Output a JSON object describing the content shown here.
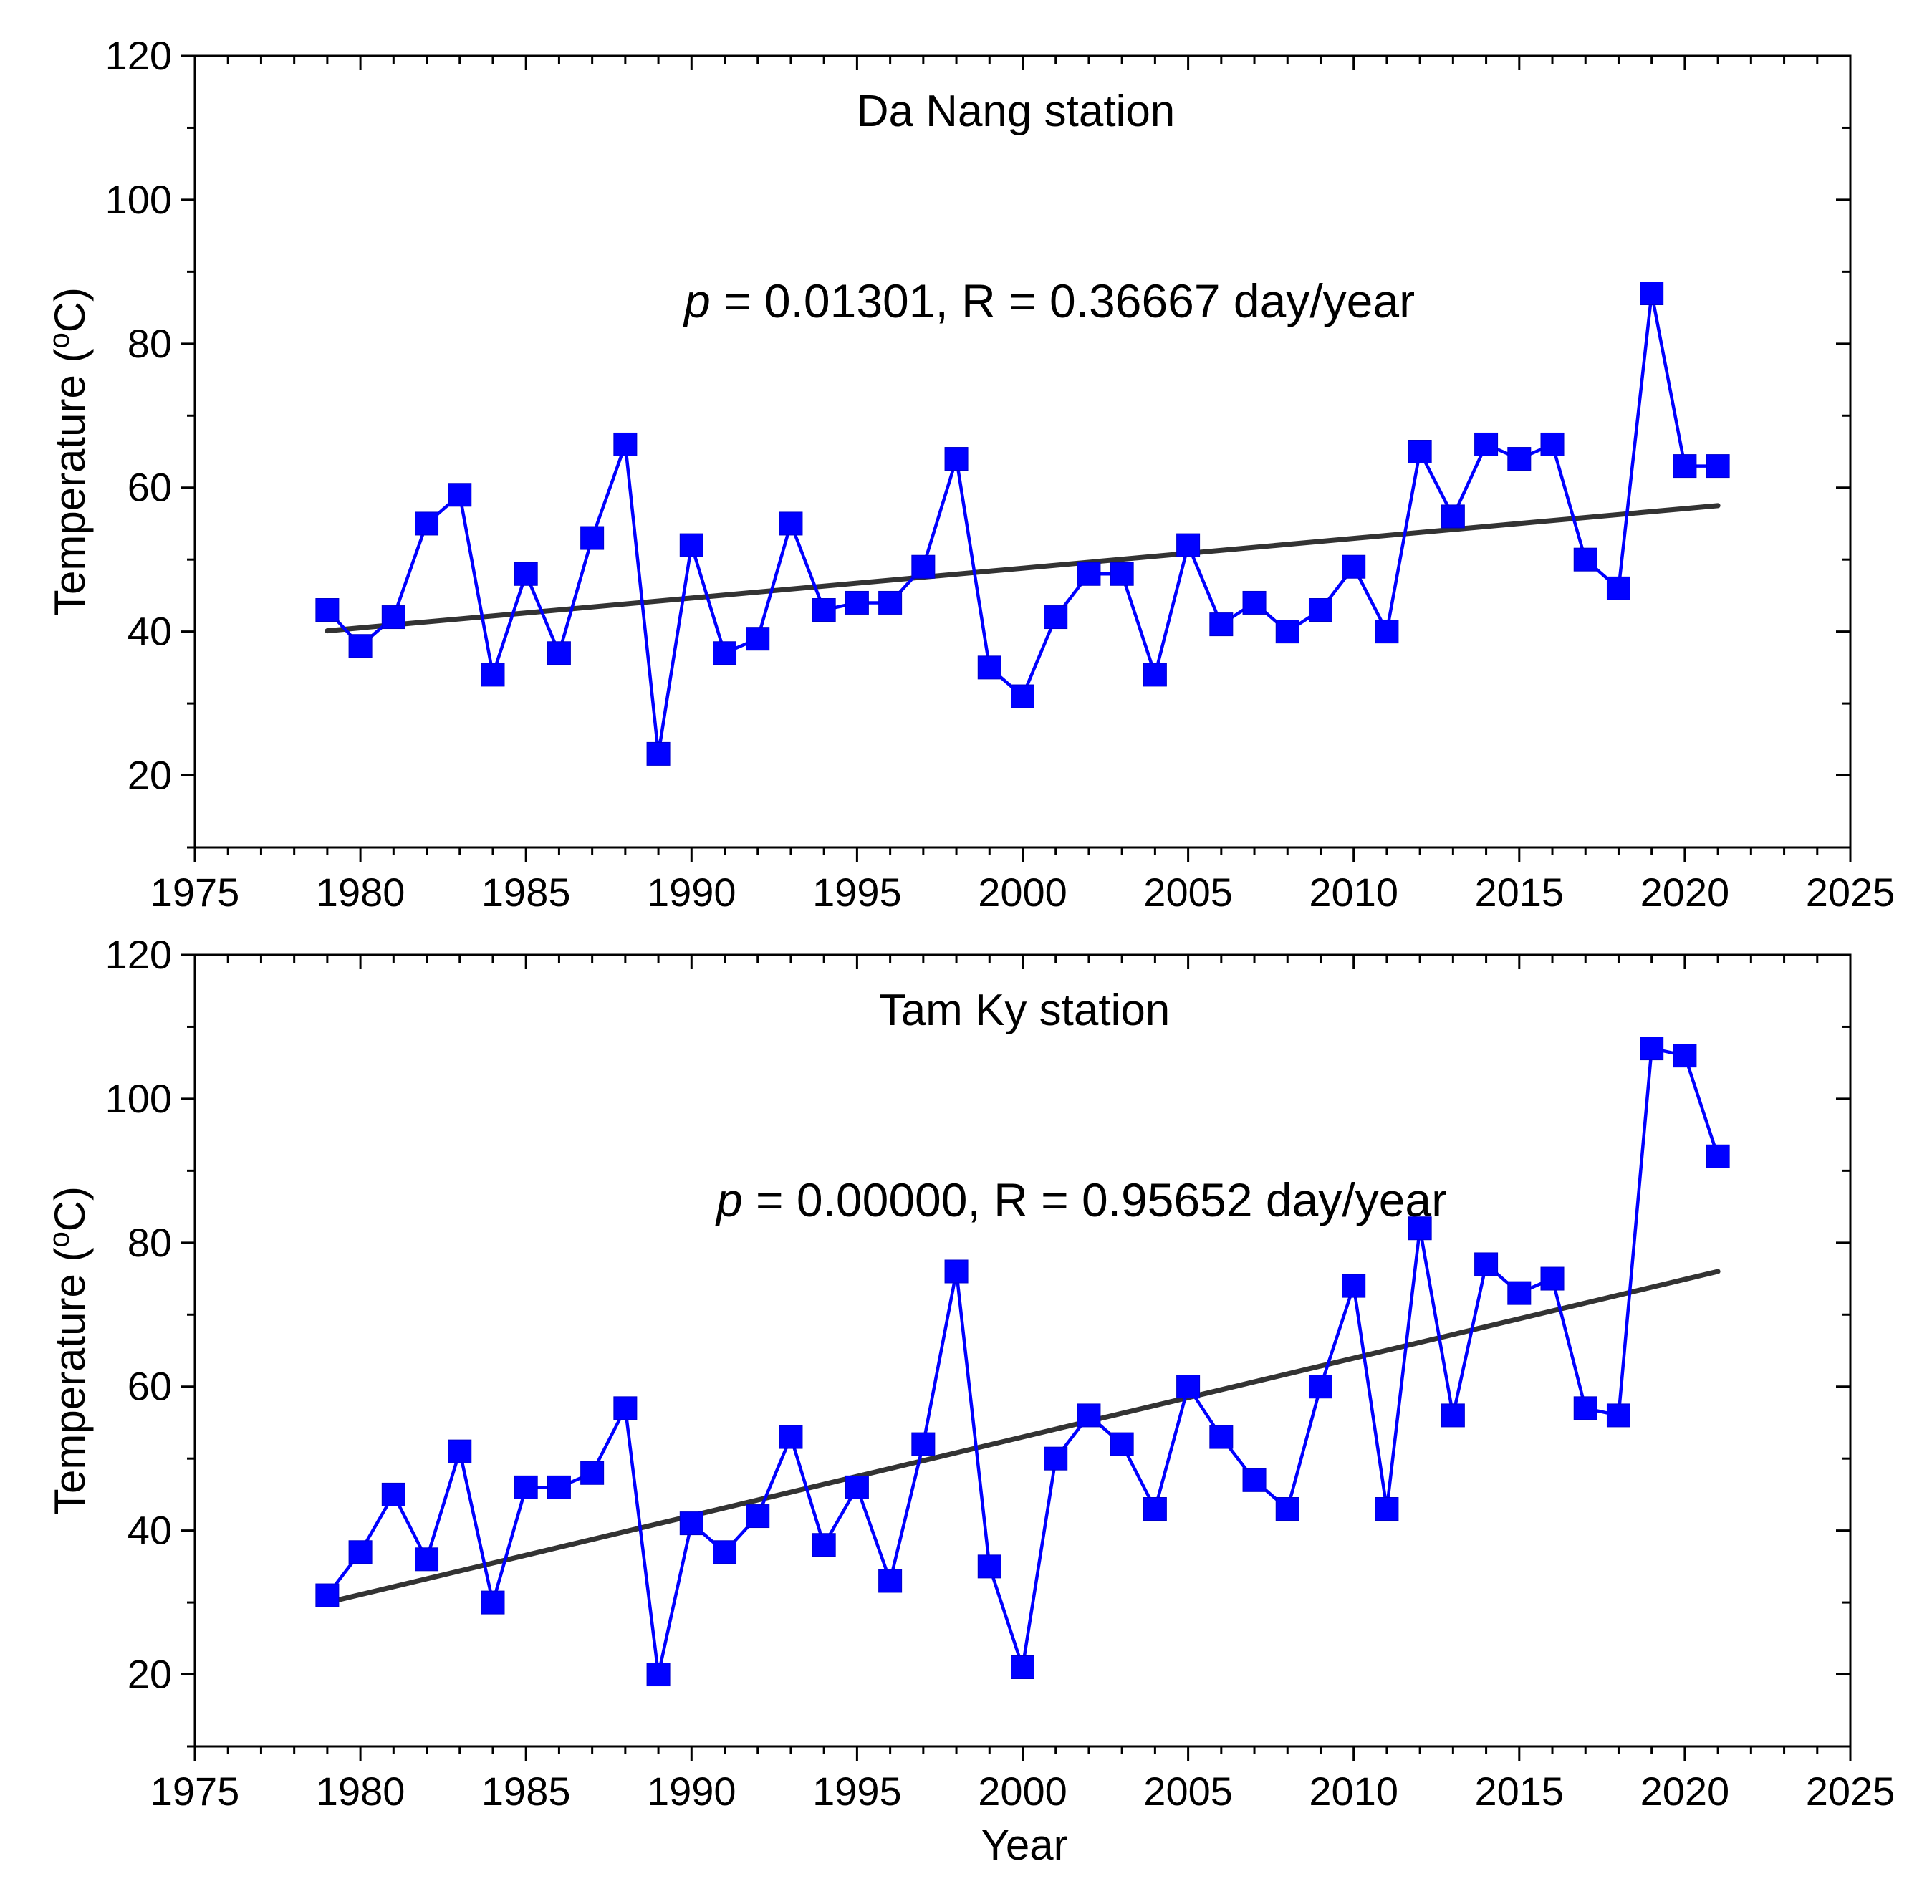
{
  "chart_data": [
    {
      "type": "line",
      "title": "Da Nang station",
      "annotation": {
        "p_label": "p",
        "rest": " = 0.01301, R = 0.36667 day/year"
      },
      "xlabel": "",
      "ylabel": "Temperature (oC)",
      "ylabel_parts": {
        "before": "Temperature (",
        "sup": "o",
        "after": "C)"
      },
      "xlim": [
        1975,
        2025
      ],
      "ylim": [
        10,
        120
      ],
      "xticks": [
        1975,
        1980,
        1985,
        1990,
        1995,
        2000,
        2005,
        2010,
        2015,
        2020,
        2025
      ],
      "yticks": [
        20,
        40,
        60,
        80,
        100,
        120
      ],
      "series": [
        {
          "name": "observed",
          "color": "#0000ff",
          "marker": "square",
          "x": [
            1979,
            1980,
            1981,
            1982,
            1983,
            1984,
            1985,
            1986,
            1987,
            1988,
            1989,
            1990,
            1991,
            1992,
            1993,
            1994,
            1995,
            1996,
            1997,
            1998,
            1999,
            2000,
            2001,
            2002,
            2003,
            2004,
            2005,
            2006,
            2007,
            2008,
            2009,
            2010,
            2011,
            2012,
            2013,
            2014,
            2015,
            2016,
            2017,
            2018,
            2019,
            2020,
            2021
          ],
          "values": [
            43,
            38,
            42,
            55,
            59,
            34,
            48,
            37,
            53,
            66,
            23,
            52,
            37,
            39,
            55,
            43,
            44,
            44,
            49,
            64,
            35,
            31,
            42,
            48,
            48,
            34,
            52,
            41,
            44,
            40,
            43,
            49,
            40,
            65,
            56,
            66,
            64,
            66,
            50,
            46,
            87,
            63,
            63
          ]
        },
        {
          "name": "trend",
          "color": "#333333",
          "x": [
            1979,
            2021
          ],
          "values": [
            40.1,
            57.5
          ]
        }
      ]
    },
    {
      "type": "line",
      "title": "Tam Ky station",
      "annotation": {
        "p_label": "p",
        "rest": " = 0.00000, R = 0.95652 day/year"
      },
      "xlabel": "Year",
      "ylabel": "Temperature (oC)",
      "ylabel_parts": {
        "before": "Temperature (",
        "sup": "o",
        "after": "C)"
      },
      "xlim": [
        1975,
        2025
      ],
      "ylim": [
        10,
        120
      ],
      "xticks": [
        1975,
        1980,
        1985,
        1990,
        1995,
        2000,
        2005,
        2010,
        2015,
        2020,
        2025
      ],
      "yticks": [
        20,
        40,
        60,
        80,
        100,
        120
      ],
      "series": [
        {
          "name": "observed",
          "color": "#0000ff",
          "marker": "square",
          "x": [
            1979,
            1980,
            1981,
            1982,
            1983,
            1984,
            1985,
            1986,
            1987,
            1988,
            1989,
            1990,
            1991,
            1992,
            1993,
            1994,
            1995,
            1996,
            1997,
            1998,
            1999,
            2000,
            2001,
            2002,
            2003,
            2004,
            2005,
            2006,
            2007,
            2008,
            2009,
            2010,
            2011,
            2012,
            2013,
            2014,
            2015,
            2016,
            2017,
            2018,
            2019,
            2020,
            2021
          ],
          "values": [
            31,
            37,
            45,
            36,
            51,
            30,
            46,
            46,
            48,
            57,
            20,
            41,
            37,
            42,
            53,
            38,
            46,
            33,
            52,
            76,
            35,
            21,
            50,
            56,
            52,
            43,
            60,
            53,
            47,
            43,
            60,
            74,
            43,
            82,
            56,
            77,
            73,
            75,
            57,
            56,
            107,
            106,
            92
          ]
        },
        {
          "name": "trend",
          "color": "#333333",
          "x": [
            1979,
            2021
          ],
          "values": [
            30.0,
            76.0
          ]
        }
      ]
    }
  ]
}
